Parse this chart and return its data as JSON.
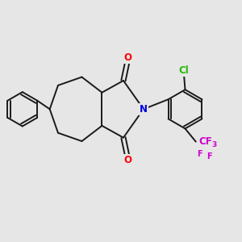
{
  "bg_color": "#e6e6e6",
  "bond_color": "#1a1a1a",
  "bond_width": 1.4,
  "atom_colors": {
    "O": "#ff0000",
    "N": "#0000dd",
    "Cl": "#22bb00",
    "F": "#cc00cc",
    "C": "#1a1a1a"
  },
  "font_size_atom": 8.5,
  "font_size_sub": 6.5
}
